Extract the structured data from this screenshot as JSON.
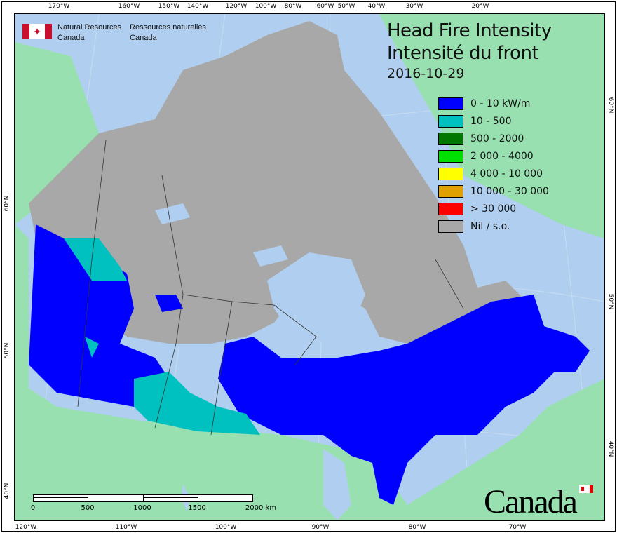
{
  "header": {
    "org_en_line1": "Natural Resources",
    "org_en_line2": "Canada",
    "org_fr_line1": "Ressources naturelles",
    "org_fr_line2": "Canada"
  },
  "title": {
    "line1": "Head Fire Intensity",
    "line2": "Intensité du front",
    "date": "2016-10-29"
  },
  "legend": [
    {
      "label": "0 - 10 kW/m",
      "color": "#0000ff"
    },
    {
      "label": "10 - 500",
      "color": "#00c0c0"
    },
    {
      "label": "500 - 2000",
      "color": "#007800"
    },
    {
      "label": "2 000 - 4000",
      "color": "#00e000"
    },
    {
      "label": "4 000 - 10 000",
      "color": "#ffff00"
    },
    {
      "label": "10 000 - 30 000",
      "color": "#e0a000"
    },
    {
      "label": "> 30 000",
      "color": "#ff0000"
    },
    {
      "label": "Nil / s.o.",
      "color": "#a8a8a8"
    }
  ],
  "axes": {
    "top": [
      "170°W",
      "160°W",
      "150°W",
      "140°W",
      "120°W",
      "100°W",
      "80°W",
      "60°W",
      "50°W",
      "40°W",
      "30°W",
      "20°W"
    ],
    "bottom": [
      "120°W",
      "110°W",
      "100°W",
      "90°W",
      "80°W",
      "70°W"
    ],
    "left": [
      "60°N",
      "50°N",
      "40°N"
    ],
    "right": [
      "60°N",
      "50°N",
      "40°N"
    ]
  },
  "scale_bar": {
    "labels": [
      "0",
      "500",
      "1000",
      "1500",
      "2000  km"
    ]
  },
  "wordmark": "Canada",
  "colors": {
    "ocean": "#b0cff0",
    "foreign_land": "#98e0b0",
    "no_data": "#a8a8a8",
    "fire_low": "#0000ff"
  }
}
